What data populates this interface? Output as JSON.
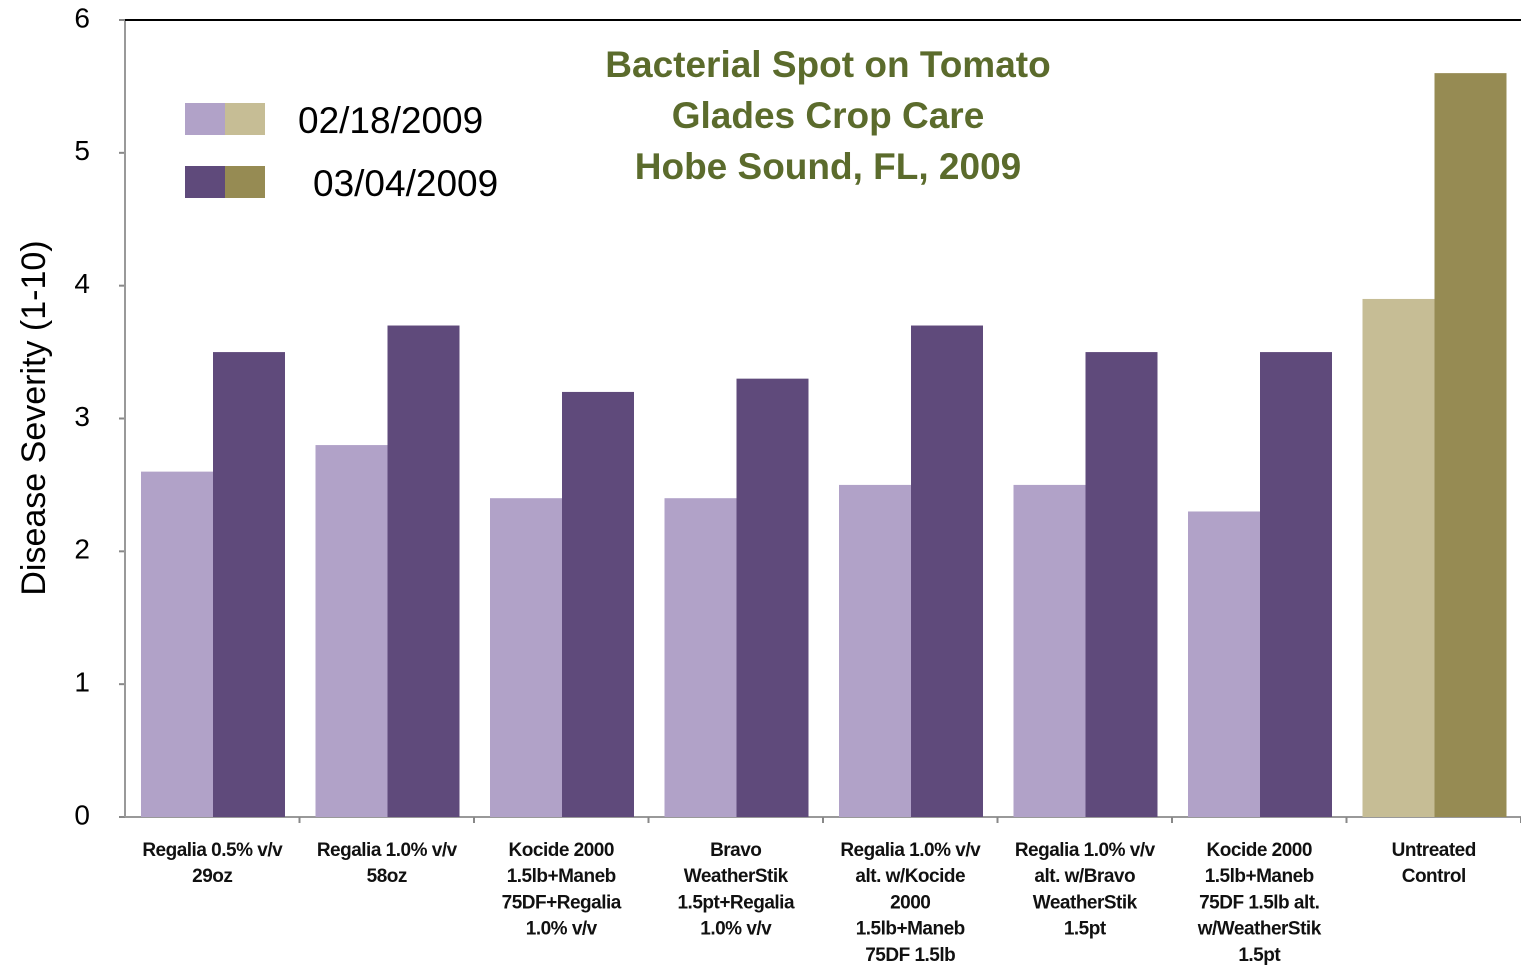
{
  "chart_data": {
    "type": "bar",
    "title": [
      "Bacterial Spot on Tomato",
      "Glades Crop Care",
      "Hobe Sound, FL, 2009"
    ],
    "y_label": "Disease Severity (1-10)",
    "categories": [
      [
        "Regalia 0.5% v/v",
        "29oz"
      ],
      [
        "Regalia 1.0% v/v",
        "58oz"
      ],
      [
        "Kocide 2000",
        "1.5lb+Maneb",
        "75DF+Regalia",
        "1.0% v/v"
      ],
      [
        "Bravo",
        "WeatherStik",
        "1.5pt+Regalia",
        "1.0% v/v"
      ],
      [
        "Regalia 1.0% v/v",
        "alt. w/Kocide",
        "2000",
        "1.5lb+Maneb",
        "75DF 1.5lb"
      ],
      [
        "Regalia 1.0% v/v",
        "alt. w/Bravo",
        "WeatherStik",
        "1.5pt"
      ],
      [
        "Kocide 2000",
        "1.5lb+Maneb",
        "75DF 1.5lb alt.",
        "w/WeatherStik",
        "1.5pt"
      ],
      [
        "Untreated",
        "Control"
      ]
    ],
    "series": [
      {
        "name": "02/18/2009",
        "colors": [
          "#b1a2c8",
          "#b1a2c8",
          "#b1a2c8",
          "#b1a2c8",
          "#b1a2c8",
          "#b1a2c8",
          "#b1a2c8",
          "#c6bd95"
        ],
        "values": [
          2.6,
          2.8,
          2.4,
          2.4,
          2.5,
          2.5,
          2.3,
          3.9
        ]
      },
      {
        "name": "03/04/2009",
        "colors": [
          "#5f4a7b",
          "#5f4a7b",
          "#5f4a7b",
          "#5f4a7b",
          "#5f4a7b",
          "#5f4a7b",
          "#5f4a7b",
          "#968b53"
        ],
        "values": [
          3.5,
          3.7,
          3.2,
          3.3,
          3.7,
          3.5,
          3.5,
          5.6
        ]
      }
    ],
    "ylim": [
      0,
      6
    ],
    "yticks": [
      0,
      1,
      2,
      3,
      4,
      5,
      6
    ]
  }
}
